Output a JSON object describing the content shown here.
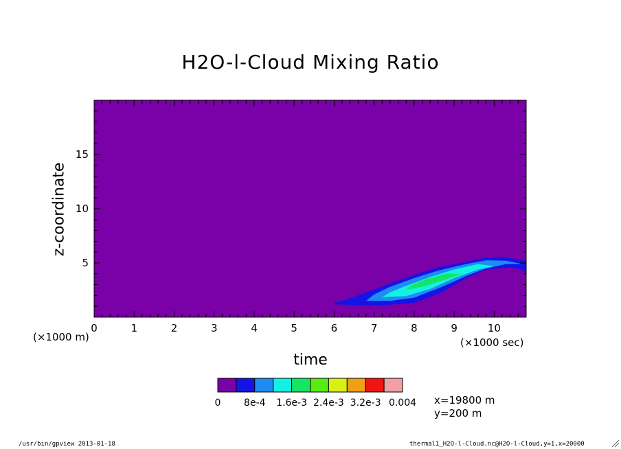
{
  "chart_data": {
    "type": "heatmap",
    "title": "H2O-l-Cloud Mixing Ratio",
    "xlabel": "time",
    "ylabel": "z-coordinate",
    "x_unit": "(×1000 sec)",
    "y_unit": "(×1000 m)",
    "xlim": [
      0,
      10.8
    ],
    "ylim": [
      0,
      20
    ],
    "x_ticks": [
      0,
      1,
      2,
      3,
      4,
      5,
      6,
      7,
      8,
      9,
      10
    ],
    "y_ticks": [
      5,
      10,
      15
    ],
    "grid": false,
    "background_level_color": "#7a00a8",
    "colorbar": {
      "labels": [
        "0",
        "8e-4",
        "1.6e-3",
        "2.4e-3",
        "3.2e-3",
        "0.004"
      ],
      "colors": [
        "#7a00a8",
        "#1414e6",
        "#1e8cf0",
        "#14f0e6",
        "#14e664",
        "#5aea14",
        "#d8f014",
        "#f0a014",
        "#f01414",
        "#f0a0a0"
      ]
    },
    "contours": [
      {
        "level": "> 0",
        "color": "#1414e6",
        "polygon": [
          [
            6.0,
            1.2
          ],
          [
            6.5,
            1.1
          ],
          [
            7.2,
            1.1
          ],
          [
            8.0,
            1.3
          ],
          [
            8.7,
            2.3
          ],
          [
            9.3,
            3.6
          ],
          [
            9.8,
            4.4
          ],
          [
            10.4,
            4.6
          ],
          [
            10.7,
            4.4
          ],
          [
            10.8,
            4.0
          ],
          [
            10.8,
            5.2
          ],
          [
            10.3,
            5.5
          ],
          [
            9.8,
            5.5
          ],
          [
            9.3,
            5.1
          ],
          [
            8.6,
            4.6
          ],
          [
            8.0,
            3.9
          ],
          [
            7.4,
            3.1
          ],
          [
            6.8,
            2.3
          ],
          [
            6.3,
            1.6
          ],
          [
            6.0,
            1.35
          ]
        ]
      },
      {
        "level": "> 4e-4",
        "color": "#1e8cf0",
        "polygon": [
          [
            6.8,
            1.5
          ],
          [
            7.4,
            1.5
          ],
          [
            8.0,
            1.8
          ],
          [
            8.7,
            2.8
          ],
          [
            9.3,
            3.8
          ],
          [
            9.8,
            4.5
          ],
          [
            10.3,
            4.9
          ],
          [
            10.7,
            4.9
          ],
          [
            10.3,
            5.2
          ],
          [
            9.8,
            5.25
          ],
          [
            9.3,
            4.9
          ],
          [
            8.6,
            4.3
          ],
          [
            8.0,
            3.6
          ],
          [
            7.4,
            2.8
          ],
          [
            7.0,
            2.1
          ]
        ]
      },
      {
        "level": "> 1.2e-3",
        "color": "#14f0e6",
        "polygon": [
          [
            7.2,
            1.85
          ],
          [
            7.8,
            1.95
          ],
          [
            8.4,
            2.6
          ],
          [
            9.0,
            3.6
          ],
          [
            9.6,
            4.4
          ],
          [
            10.0,
            4.7
          ],
          [
            9.6,
            4.9
          ],
          [
            9.0,
            4.4
          ],
          [
            8.4,
            3.7
          ],
          [
            7.8,
            2.9
          ],
          [
            7.4,
            2.3
          ]
        ]
      },
      {
        "level": "> 2e-3",
        "color": "#14e664",
        "polygon": [
          [
            7.8,
            2.5
          ],
          [
            8.3,
            2.9
          ],
          [
            8.8,
            3.5
          ],
          [
            9.2,
            4.0
          ],
          [
            8.8,
            4.0
          ],
          [
            8.3,
            3.5
          ],
          [
            7.9,
            2.9
          ]
        ]
      }
    ]
  },
  "info": {
    "x_line": "x=19800 m",
    "y_line": "y=200 m"
  },
  "footer": {
    "left": "/usr/bin/gpview  2013-01-18",
    "right": "thermal1_H2O-l-Cloud.nc@H2O-l-Cloud,y=1,x=20000"
  }
}
